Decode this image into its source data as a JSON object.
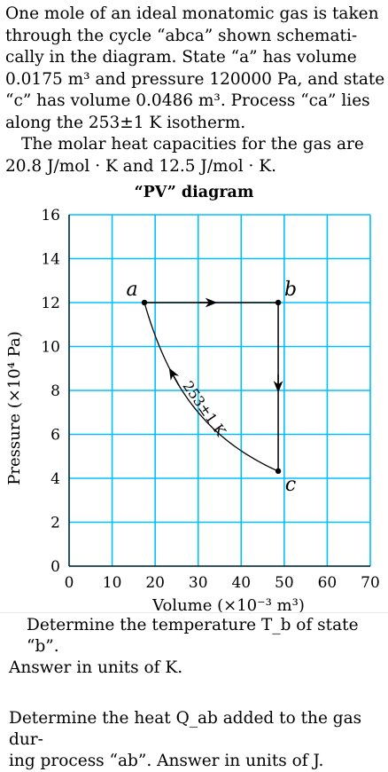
{
  "problem": {
    "intro_lines": [
      "One mole of an ideal monatomic gas is taken",
      "through the cycle “abca” shown schemati-",
      "cally in the diagram.  State “a” has volume",
      "0.0175 m³ and pressure 120000 Pa, and state",
      "“c” has volume 0.0486 m³.  Process “ca” lies",
      "along the 253±1 K isotherm."
    ],
    "heat_capacity_lines": [
      "The molar heat capacities for the gas are",
      "20.8 J/mol · K and 12.5 J/mol · K."
    ]
  },
  "questions": {
    "q1_line1": "Determine the temperature T_b of state “b”.",
    "q1_line2": "Answer in units of  K.",
    "q2_line1": "Determine the heat Q_ab added to the gas dur-",
    "q2_line2": "ing process “ab”. Answer in units of  J."
  },
  "chart_data": {
    "type": "line",
    "title": "“PV” diagram",
    "xlabel": "Volume (×10⁻³ m³)",
    "ylabel": "Pressure (×10⁴ Pa)",
    "xlim": [
      0,
      70
    ],
    "ylim": [
      0,
      16
    ],
    "x_ticks": [
      0,
      10,
      20,
      30,
      40,
      50,
      60,
      70
    ],
    "y_ticks": [
      0,
      2,
      4,
      6,
      8,
      10,
      12,
      14,
      16
    ],
    "grid": true,
    "grid_color": "#00bfff",
    "points": [
      {
        "label": "a",
        "x": 17.5,
        "y": 12
      },
      {
        "label": "b",
        "x": 48.6,
        "y": 12
      },
      {
        "label": "c",
        "x": 48.6,
        "y": 4.33
      }
    ],
    "processes": [
      {
        "from": "a",
        "to": "b",
        "kind": "isobaric"
      },
      {
        "from": "b",
        "to": "c",
        "kind": "isochoric"
      },
      {
        "from": "c",
        "to": "a",
        "kind": "isotherm"
      }
    ],
    "isotherm_label": "253±1 K"
  }
}
